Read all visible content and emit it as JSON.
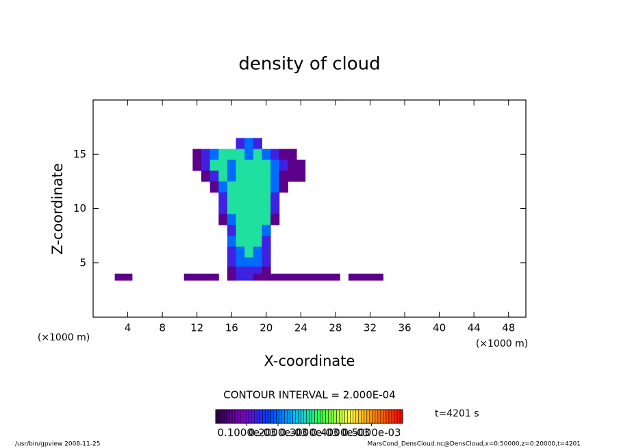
{
  "chart_data": {
    "type": "heatmap",
    "title": "density of cloud",
    "x_label": "X-coordinate",
    "y_label": "Z-coordinate",
    "x_unit": "(×1000 m)",
    "y_unit": "(×1000 m)",
    "xlim": [
      0,
      50
    ],
    "ylim": [
      0,
      20
    ],
    "xticks": [
      4,
      8,
      12,
      16,
      20,
      24,
      28,
      32,
      36,
      40,
      44,
      48
    ],
    "yticks": [
      5,
      10,
      15
    ],
    "x": [
      3,
      4,
      5,
      6,
      7,
      8,
      9,
      10,
      11,
      12,
      13,
      14,
      15,
      16,
      17,
      18,
      19,
      20,
      21,
      22,
      23,
      24,
      25,
      26,
      27,
      28,
      29,
      30,
      31,
      32,
      33
    ],
    "z": [
      16,
      15,
      14,
      13,
      12,
      11,
      10,
      9,
      8,
      7,
      6,
      5,
      4.3,
      3.7
    ],
    "values": [
      [
        null,
        null,
        null,
        null,
        null,
        null,
        null,
        null,
        null,
        null,
        null,
        null,
        null,
        null,
        0.00013,
        0.0002,
        0.00013,
        null,
        null,
        null,
        null,
        null,
        null,
        null,
        null,
        null,
        null,
        null,
        null,
        null,
        null
      ],
      [
        null,
        null,
        null,
        null,
        null,
        null,
        null,
        null,
        null,
        5e-05,
        0.00013,
        0.0002,
        0.0003,
        0.0003,
        0.0003,
        0.0002,
        0.0003,
        0.0002,
        0.00013,
        5e-05,
        5e-05,
        null,
        null,
        null,
        null,
        null,
        null,
        null,
        null,
        null,
        null
      ],
      [
        null,
        null,
        null,
        null,
        null,
        null,
        null,
        null,
        null,
        5e-05,
        0.00013,
        0.0003,
        0.0003,
        0.0002,
        0.0003,
        0.0003,
        0.0003,
        0.0003,
        0.0002,
        0.00013,
        5e-05,
        5e-05,
        null,
        null,
        null,
        null,
        null,
        null,
        null,
        null,
        null
      ],
      [
        null,
        null,
        null,
        null,
        null,
        null,
        null,
        null,
        null,
        null,
        5e-05,
        0.00013,
        0.0003,
        0.0002,
        0.0003,
        0.0003,
        0.0003,
        0.0003,
        0.0002,
        5e-05,
        5e-05,
        5e-05,
        null,
        null,
        null,
        null,
        null,
        null,
        null,
        null,
        null
      ],
      [
        null,
        null,
        null,
        null,
        null,
        null,
        null,
        null,
        null,
        null,
        null,
        5e-05,
        0.0002,
        0.0003,
        0.0003,
        0.0003,
        0.0003,
        0.0003,
        0.0002,
        5e-05,
        null,
        null,
        null,
        null,
        null,
        null,
        null,
        null,
        null,
        null,
        null
      ],
      [
        null,
        null,
        null,
        null,
        null,
        null,
        null,
        null,
        null,
        null,
        null,
        null,
        0.00013,
        0.0003,
        0.0003,
        0.0003,
        0.0003,
        0.0003,
        0.00013,
        null,
        null,
        null,
        null,
        null,
        null,
        null,
        null,
        null,
        null,
        null,
        null
      ],
      [
        null,
        null,
        null,
        null,
        null,
        null,
        null,
        null,
        null,
        null,
        null,
        null,
        0.00013,
        0.0003,
        0.0003,
        0.0003,
        0.0003,
        0.0003,
        0.00013,
        null,
        null,
        null,
        null,
        null,
        null,
        null,
        null,
        null,
        null,
        null,
        null
      ],
      [
        null,
        null,
        null,
        null,
        null,
        null,
        null,
        null,
        null,
        null,
        null,
        null,
        5e-05,
        0.0002,
        0.0003,
        0.0003,
        0.0003,
        0.0003,
        5e-05,
        null,
        null,
        null,
        null,
        null,
        null,
        null,
        null,
        null,
        null,
        null,
        null
      ],
      [
        null,
        null,
        null,
        null,
        null,
        null,
        null,
        null,
        null,
        null,
        null,
        null,
        null,
        0.00013,
        0.0003,
        0.0003,
        0.0003,
        0.0002,
        null,
        null,
        null,
        null,
        null,
        null,
        null,
        null,
        null,
        null,
        null,
        null,
        null
      ],
      [
        null,
        null,
        null,
        null,
        null,
        null,
        null,
        null,
        null,
        null,
        null,
        null,
        null,
        0.0002,
        0.0003,
        0.0003,
        0.0003,
        0.00013,
        null,
        null,
        null,
        null,
        null,
        null,
        null,
        null,
        null,
        null,
        null,
        null,
        null
      ],
      [
        null,
        null,
        null,
        null,
        null,
        null,
        null,
        null,
        null,
        null,
        null,
        null,
        null,
        0.00013,
        0.0002,
        0.0003,
        0.0002,
        0.00013,
        null,
        null,
        null,
        null,
        null,
        null,
        null,
        null,
        null,
        null,
        null,
        null,
        null
      ],
      [
        null,
        null,
        null,
        null,
        null,
        null,
        null,
        null,
        null,
        null,
        null,
        null,
        null,
        0.00013,
        0.0002,
        0.0002,
        0.0002,
        0.00013,
        null,
        null,
        null,
        null,
        null,
        null,
        null,
        null,
        null,
        null,
        null,
        null,
        null
      ],
      [
        null,
        null,
        null,
        null,
        null,
        null,
        null,
        null,
        null,
        null,
        null,
        null,
        null,
        5e-05,
        0.00013,
        0.00013,
        0.00013,
        5e-05,
        null,
        null,
        null,
        null,
        null,
        null,
        null,
        null,
        null,
        null,
        null,
        null,
        null
      ],
      [
        5e-05,
        5e-05,
        null,
        null,
        null,
        null,
        null,
        null,
        5e-05,
        5e-05,
        5e-05,
        5e-05,
        null,
        5e-05,
        0.00013,
        0.00013,
        5e-05,
        5e-05,
        5e-05,
        5e-05,
        5e-05,
        5e-05,
        5e-05,
        5e-05,
        5e-05,
        5e-05,
        null,
        5e-05,
        5e-05,
        5e-05,
        5e-05
      ]
    ],
    "clim": [
      0,
      0.0006
    ],
    "colormap": [
      "#2a0040",
      "#8000c0",
      "#0040ff",
      "#00c0ff",
      "#40ff40",
      "#ffff40",
      "#ff8000",
      "#ff0000"
    ],
    "colorbar_ticks": [
      {
        "value": 0.0001,
        "label": "0.1000e-03"
      },
      {
        "value": 0.0002,
        "label": "0.2000e-03"
      },
      {
        "value": 0.0003,
        "label": "0.3000e-03"
      },
      {
        "value": 0.0004,
        "label": "0.4000e-03"
      },
      {
        "value": 0.0005,
        "label": "0.5000e-03"
      }
    ],
    "contour_interval": "CONTOUR INTERVAL = 2.000E-04",
    "time_label": "t=4201 s",
    "footer_left": "/usr/bin/gpview   2008-11-25",
    "footer_right": "MarsCond_DensCloud.nc@DensCloud,x=0:50000,z=0:20000,t=4201"
  }
}
